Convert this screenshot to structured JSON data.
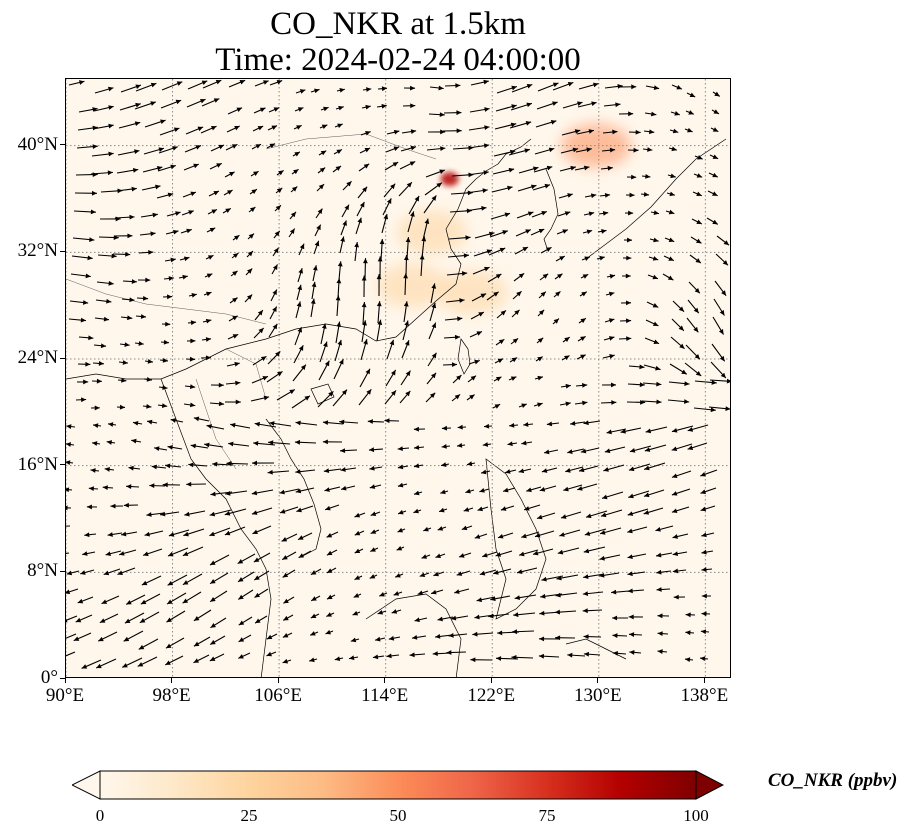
{
  "title": "CO_NKR at 1.5km",
  "subtitle": "Time: 2024-02-24 04:00:00",
  "colorbar_label": "CO_NKR (ppbv)",
  "colors": {
    "ocean": "#fff7ec",
    "plume_low": "#fdd49e",
    "plume_mid": "#fc8d59",
    "plume_high": "#b30000",
    "arrow": "#000000",
    "grid": "#888888"
  },
  "chart_data": {
    "type": "heatmap",
    "title": "CO_NKR at 1.5km",
    "subtitle": "Time: 2024-02-24 04:00:00",
    "variable": "CO_NKR",
    "level": "1.5km",
    "time": "2024-02-24 04:00:00",
    "lon_range": [
      90,
      140
    ],
    "lat_range": [
      0,
      45
    ],
    "xticks": [
      "90°E",
      "98°E",
      "106°E",
      "114°E",
      "122°E",
      "130°E",
      "138°E"
    ],
    "xtick_values": [
      90,
      98,
      106,
      114,
      122,
      130,
      138
    ],
    "yticks": [
      "0°",
      "8°N",
      "16°N",
      "24°N",
      "32°N",
      "40°N"
    ],
    "ytick_values": [
      0,
      8,
      16,
      24,
      32,
      40
    ],
    "grid": true,
    "grid_style": "dotted",
    "colorbar": {
      "label": "CO_NKR (ppbv)",
      "ticks": [
        "0",
        "25",
        "50",
        "75",
        "100"
      ],
      "tick_values": [
        0,
        25,
        50,
        75,
        100
      ],
      "range": [
        0,
        100
      ],
      "extend": "both",
      "colormap": "OrRd",
      "placement": "bottom"
    },
    "overlay": "wind vectors (quiver)",
    "hotspots": [
      {
        "lon": 118.8,
        "lat": 37.5,
        "value": 60
      },
      {
        "lon": 129.8,
        "lat": 40.0,
        "value": 25
      },
      {
        "lon": 117.5,
        "lat": 33.5,
        "value": 15
      },
      {
        "lon": 120.5,
        "lat": 29.0,
        "value": 18
      },
      {
        "lon": 116.0,
        "lat": 29.5,
        "value": 12
      }
    ]
  }
}
